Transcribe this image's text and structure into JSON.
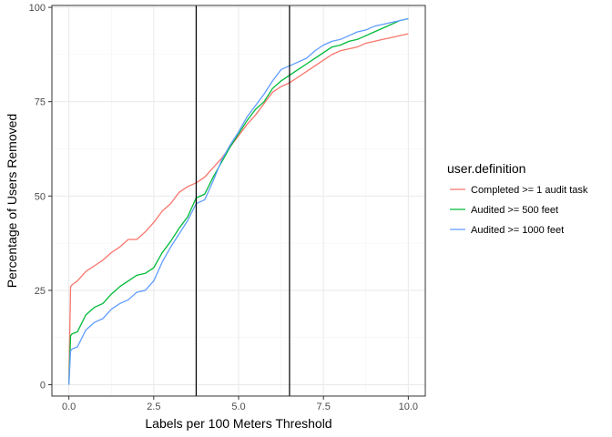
{
  "chart_data": {
    "type": "line",
    "xlabel": "Labels per 100 Meters Threshold",
    "ylabel": "Percentage of Users Removed",
    "xlim": [
      -0.5,
      10.5
    ],
    "ylim": [
      -3,
      100.5
    ],
    "x_ticks": [
      0,
      2.5,
      5,
      7.5,
      10
    ],
    "x_tick_labels": [
      "0.0",
      "2.5",
      "5.0",
      "7.5",
      "10.0"
    ],
    "y_ticks": [
      0,
      25,
      50,
      75,
      100
    ],
    "y_tick_labels": [
      "0",
      "25",
      "50",
      "75",
      "100"
    ],
    "grid": true,
    "theme": "bw",
    "vlines": [
      3.75,
      6.5
    ],
    "legend": {
      "title": "user.definition",
      "position": "right"
    },
    "series": [
      {
        "name": "Completed >= 1 audit task",
        "color": "#F8766D",
        "x": [
          0,
          0.05,
          0.1,
          0.25,
          0.5,
          0.75,
          1.0,
          1.25,
          1.5,
          1.75,
          2.0,
          2.25,
          2.5,
          2.75,
          3.0,
          3.25,
          3.5,
          3.75,
          4.0,
          4.25,
          4.5,
          4.75,
          5.0,
          5.25,
          5.5,
          5.75,
          6.0,
          6.25,
          6.5,
          6.75,
          7.0,
          7.25,
          7.5,
          7.75,
          8.0,
          8.25,
          8.5,
          8.75,
          9.0,
          9.25,
          9.5,
          9.75,
          10.0
        ],
        "values": [
          0,
          26,
          26.5,
          27.5,
          30,
          31.5,
          33,
          35,
          36.5,
          38.5,
          38.5,
          40.5,
          43,
          46,
          48,
          51,
          52.5,
          53.5,
          55,
          57.5,
          60,
          63,
          66,
          69,
          71.5,
          74.5,
          77.5,
          79,
          80,
          81.5,
          83,
          84.5,
          86,
          87.5,
          88.5,
          89,
          89.5,
          90.5,
          91,
          91.5,
          92,
          92.5,
          93
        ]
      },
      {
        "name": "Audited >= 500 feet",
        "color": "#00BA38",
        "x": [
          0,
          0.05,
          0.1,
          0.25,
          0.5,
          0.75,
          1.0,
          1.25,
          1.5,
          1.75,
          2.0,
          2.25,
          2.5,
          2.75,
          3.0,
          3.25,
          3.5,
          3.75,
          4.0,
          4.25,
          4.5,
          4.75,
          5.0,
          5.25,
          5.5,
          5.75,
          6.0,
          6.25,
          6.5,
          6.75,
          7.0,
          7.25,
          7.5,
          7.75,
          8.0,
          8.25,
          8.5,
          8.75,
          9.0,
          9.25,
          9.5,
          9.75,
          10.0
        ],
        "values": [
          0,
          13,
          13.5,
          14,
          18.5,
          20.5,
          21.5,
          24,
          26,
          27.5,
          29,
          29.5,
          31,
          35,
          38,
          41.5,
          44.5,
          49.5,
          50.5,
          55,
          59,
          63,
          66.5,
          70,
          73,
          75,
          78.5,
          80.5,
          82,
          83.5,
          85,
          86.5,
          88,
          89.5,
          90,
          91,
          91.5,
          92.5,
          93.5,
          94.5,
          95.5,
          96.5,
          97
        ]
      },
      {
        "name": "Audited >= 1000 feet",
        "color": "#619CFF",
        "x": [
          0,
          0.05,
          0.1,
          0.25,
          0.5,
          0.75,
          1.0,
          1.25,
          1.5,
          1.75,
          2.0,
          2.25,
          2.5,
          2.75,
          3.0,
          3.25,
          3.5,
          3.75,
          4.0,
          4.25,
          4.5,
          4.75,
          5.0,
          5.25,
          5.5,
          5.75,
          6.0,
          6.25,
          6.5,
          6.75,
          7.0,
          7.25,
          7.5,
          7.75,
          8.0,
          8.25,
          8.5,
          8.75,
          9.0,
          9.25,
          9.5,
          9.75,
          10.0
        ],
        "values": [
          0,
          9,
          9.5,
          10,
          14.5,
          16.5,
          17.5,
          20,
          21.5,
          22.5,
          24.5,
          25,
          27.5,
          32.5,
          36.5,
          40,
          43.5,
          48,
          49,
          54,
          59.5,
          63.5,
          67,
          71,
          74,
          77,
          80.5,
          83.5,
          84.5,
          85.5,
          86.5,
          88.5,
          90,
          91,
          91.5,
          92.5,
          93.5,
          94,
          95,
          95.5,
          96,
          96.5,
          97
        ]
      }
    ]
  }
}
